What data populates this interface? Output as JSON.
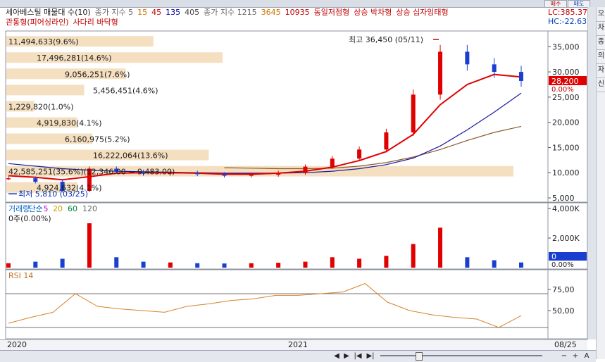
{
  "top_strip": {
    "buttons": [
      "매수",
      "매도"
    ]
  },
  "legend": {
    "row1": [
      {
        "label": "세아베스틸 매물대 수(10)",
        "color": "#222222"
      },
      {
        "label": "종가 지수 5",
        "color": "#666666"
      },
      {
        "label": "15",
        "color": "#d07000"
      },
      {
        "label": "45",
        "color": "#c00000"
      },
      {
        "label": "135",
        "color": "#0000a0"
      },
      {
        "label": "405",
        "color": "#444444"
      },
      {
        "label": "종가 지수 1215",
        "color": "#666666"
      },
      {
        "label": "3645",
        "color": "#d07000"
      },
      {
        "label": "10935",
        "color": "#c00000"
      },
      {
        "label": "동일저점형",
        "color": "#c00000"
      },
      {
        "label": "상승 박차형",
        "color": "#c00000"
      },
      {
        "label": "상승 십자잉태형",
        "color": "#c00000"
      }
    ],
    "row2": [
      {
        "label": "관통형(피어싱라인)",
        "color": "#c00000"
      },
      {
        "label": "사다리 바닥형",
        "color": "#c00000"
      }
    ],
    "lc": "LC:385.37",
    "hc": "HC:-22.63"
  },
  "right_tabs": [
    "오",
    "차",
    "종",
    "의",
    "자",
    "신"
  ],
  "price_labels": {
    "high": "최고 36,450 (05/11)",
    "low": "최저 5,810 (03/25)",
    "current_price": "28,200",
    "current_pct": "0.00%"
  },
  "volume_profile": [
    {
      "text": "11,494,633(9.6%)",
      "ratio": 0.096
    },
    {
      "text": "17,496,281(14.6%)",
      "ratio": 0.146
    },
    {
      "text": "9,056,251(7.6%)",
      "ratio": 0.076
    },
    {
      "text": "5,456,451(4.6%)",
      "ratio": 0.046
    },
    {
      "text": "1,229,820(1.0%)",
      "ratio": 0.01
    },
    {
      "text": "4,919,830(4.1%)",
      "ratio": 0.041
    },
    {
      "text": "6,160,975(5.2%)",
      "ratio": 0.052
    },
    {
      "text": "16,222,064(13.6%)",
      "ratio": 0.136
    },
    {
      "text": "42,585,251(35.6%)(12,346.00 ~ 9,483.00)",
      "ratio": 0.356
    },
    {
      "text": "4,924,632(4.1%)",
      "ratio": 0.041
    }
  ],
  "volume_panel": {
    "title_parts": [
      {
        "label": "거래량",
        "color": "#0060c0"
      },
      {
        "label": "단순",
        "color": "#0060c0"
      },
      {
        "label": "5",
        "color": "#c000c0"
      },
      {
        "label": "20",
        "color": "#d0a000"
      },
      {
        "label": "60",
        "color": "#008040"
      },
      {
        "label": "120",
        "color": "#666666"
      }
    ],
    "sub": "0주(0.00%)",
    "current_value": "0",
    "current_pct": "0.00%"
  },
  "rsi_panel": {
    "title": "RSI 14"
  },
  "x_axis_labels": [
    "2020",
    "2021",
    "08/25"
  ],
  "toolbar": {
    "buttons": [
      "◀",
      "▶",
      "|◀",
      "▶|",
      "−",
      "+",
      "A"
    ]
  },
  "colors": {
    "up": "#e00000",
    "down": "#1a3fd0",
    "ma_red": "#e00000",
    "ma_blue": "#1a1aa0",
    "ma_brown": "#8b5a2b",
    "profile_fill": "#f4dfc0",
    "rsi_line": "#d9822b"
  },
  "chart_data": [
    {
      "type": "line",
      "title": "세아베스틸 매물대 수(10)",
      "ylim": [
        5000,
        37000
      ],
      "y_ticks": [
        "35,000",
        "30,000",
        "25,000",
        "20,000",
        "15,000",
        "10,000",
        "5,000"
      ],
      "y_tick_values": [
        35000,
        30000,
        25000,
        20000,
        15000,
        10000,
        5000
      ],
      "x": [
        "2020-01",
        "2020-02",
        "2020-03",
        "2020-04",
        "2020-05",
        "2020-06",
        "2020-07",
        "2020-08",
        "2020-09",
        "2020-10",
        "2020-11",
        "2020-12",
        "2021-01",
        "2021-02",
        "2021-03",
        "2021-04",
        "2021-05",
        "2021-06",
        "2021-07",
        "2021-08"
      ],
      "series": [
        {
          "values": [
            8900,
            8200,
            6400,
            10800,
            10200,
            9800,
            10000,
            9700,
            9400,
            9600,
            10000,
            11200,
            12800,
            14600,
            18000,
            25500,
            34000,
            31500,
            30000,
            28200
          ]
        },
        {
          "values": [
            9400,
            9100,
            8600,
            9200,
            9900,
            10000,
            10000,
            9900,
            9700,
            9700,
            9900,
            10300,
            11100,
            12400,
            14200,
            17600,
            23500,
            27500,
            29500,
            29000
          ]
        },
        {
          "values": [
            11800,
            11300,
            10800,
            10500,
            10300,
            10200,
            10100,
            10000,
            9900,
            9900,
            9900,
            10000,
            10300,
            10800,
            11600,
            12900,
            15300,
            18500,
            22000,
            25800
          ]
        },
        {
          "values": [
            null,
            null,
            null,
            null,
            null,
            null,
            null,
            null,
            11000,
            10900,
            10800,
            10800,
            10900,
            11300,
            12000,
            13100,
            14600,
            16400,
            18000,
            19200
          ]
        }
      ],
      "ma_end_values": [
        25800,
        19200
      ]
    },
    {
      "type": "bar",
      "ylim": [
        0,
        4000
      ],
      "y_ticks": [
        "4,000K",
        "2,000K"
      ],
      "y_tick_values": [
        4000,
        2000
      ],
      "values": [
        300,
        400,
        600,
        3000,
        700,
        400,
        350,
        300,
        280,
        300,
        330,
        400,
        700,
        600,
        800,
        1600,
        2700,
        700,
        500,
        350
      ]
    },
    {
      "type": "line",
      "ylim": [
        20,
        95
      ],
      "y_ticks": [
        "75,00",
        "50,00"
      ],
      "y_tick_values": [
        75,
        50
      ],
      "values": [
        35,
        42,
        48,
        70,
        55,
        52,
        50,
        48,
        55,
        58,
        62,
        64,
        68,
        68,
        70,
        72,
        82,
        60,
        50,
        45,
        42,
        40,
        30,
        44
      ]
    }
  ]
}
